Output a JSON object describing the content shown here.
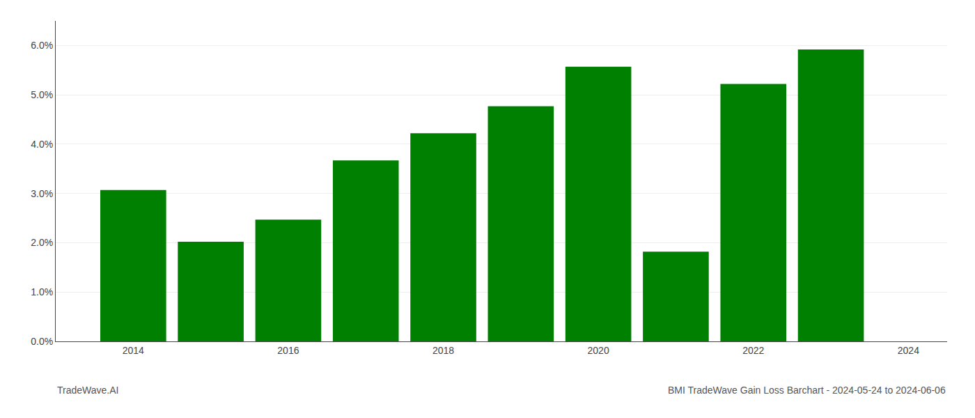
{
  "chart_data": {
    "type": "bar",
    "title": "BMI TradeWave Gain Loss Barchart - 2024-05-24 to 2024-06-06",
    "annotations": [
      "TradeWave.AI"
    ],
    "x": [
      2014,
      2015,
      2016,
      2017,
      2018,
      2019,
      2020,
      2021,
      2022,
      2023
    ],
    "values": [
      0.0307,
      0.0202,
      0.0247,
      0.0367,
      0.0422,
      0.0477,
      0.0557,
      0.0182,
      0.0522,
      0.0592
    ],
    "color": "#008000",
    "xlim": [
      2013.0,
      2024.5
    ],
    "xticks": [
      2014,
      2016,
      2018,
      2020,
      2022,
      2024
    ],
    "ylim": [
      0,
      0.065
    ],
    "yticks": [
      {
        "value": 0.0,
        "label": "0.0%"
      },
      {
        "value": 0.01,
        "label": "1.0%"
      },
      {
        "value": 0.02,
        "label": "2.0%"
      },
      {
        "value": 0.03,
        "label": "3.0%"
      },
      {
        "value": 0.04,
        "label": "4.0%"
      },
      {
        "value": 0.05,
        "label": "5.0%"
      },
      {
        "value": 0.06,
        "label": "6.0%"
      }
    ],
    "grid": true
  }
}
